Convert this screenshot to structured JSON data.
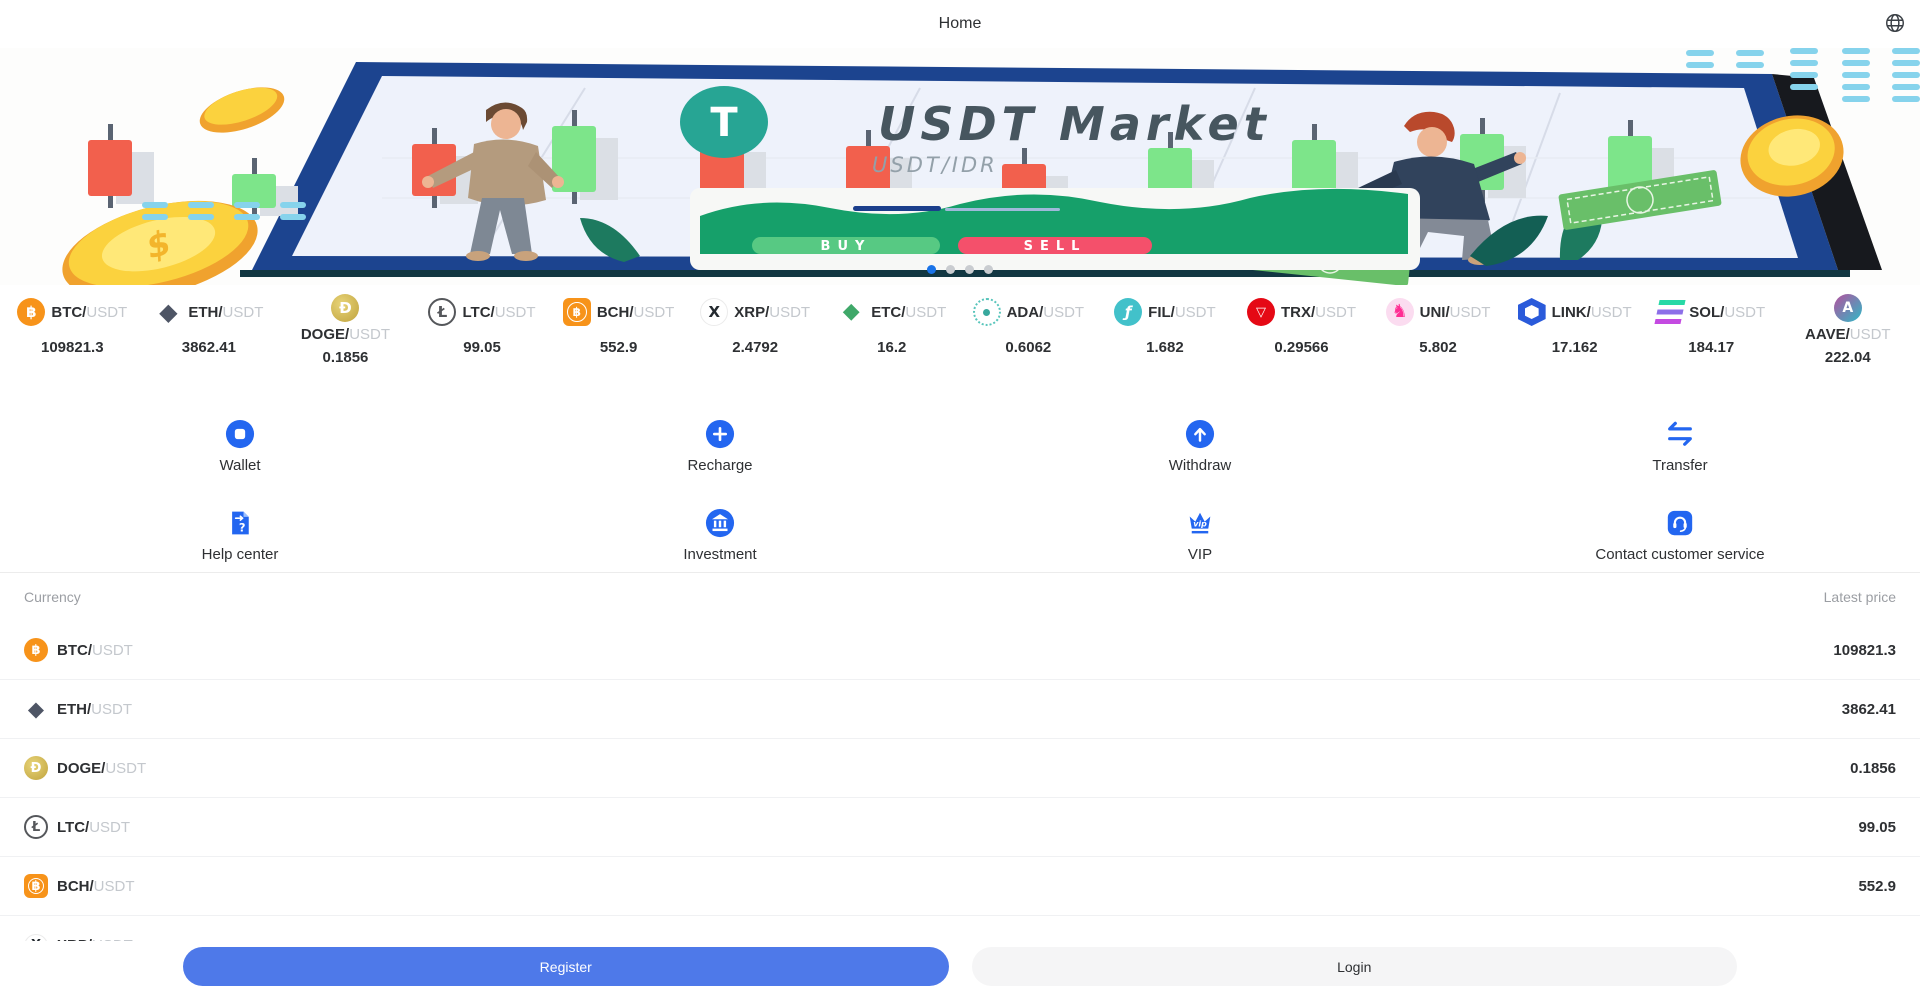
{
  "header": {
    "title": "Home"
  },
  "banner": {
    "title": "USDT Market",
    "subtitle": "USDT/IDR",
    "buy_label": "BUY",
    "sell_label": "SELL",
    "carousel": {
      "count": 4,
      "active": 0
    }
  },
  "ticker": {
    "quote": "USDT",
    "items": [
      {
        "symbol": "BTC",
        "price": "109821.3"
      },
      {
        "symbol": "ETH",
        "price": "3862.41"
      },
      {
        "symbol": "DOGE",
        "price": "0.1856",
        "wrapped": true
      },
      {
        "symbol": "LTC",
        "price": "99.05"
      },
      {
        "symbol": "BCH",
        "price": "552.9"
      },
      {
        "symbol": "XRP",
        "price": "2.4792"
      },
      {
        "symbol": "ETC",
        "price": "16.2"
      },
      {
        "symbol": "ADA",
        "price": "0.6062"
      },
      {
        "symbol": "FIL",
        "price": "1.682"
      },
      {
        "symbol": "TRX",
        "price": "0.29566"
      },
      {
        "symbol": "UNI",
        "price": "5.802"
      },
      {
        "symbol": "LINK",
        "price": "17.162"
      },
      {
        "symbol": "SOL",
        "price": "184.17"
      },
      {
        "symbol": "AAVE",
        "price": "222.04",
        "wrapped": true
      }
    ]
  },
  "actions": [
    {
      "label": "Wallet",
      "icon": "wallet-icon"
    },
    {
      "label": "Recharge",
      "icon": "recharge-plus-icon"
    },
    {
      "label": "Withdraw",
      "icon": "withdraw-arrow-up-icon"
    },
    {
      "label": "Transfer",
      "icon": "transfer-swap-icon"
    },
    {
      "label": "Help center",
      "icon": "help-document-icon"
    },
    {
      "label": "Investment",
      "icon": "investment-bank-icon"
    },
    {
      "label": "VIP",
      "icon": "vip-crown-icon"
    },
    {
      "label": "Contact customer service",
      "icon": "customer-service-headset-icon"
    }
  ],
  "market_table": {
    "columns": [
      "Currency",
      "Latest price"
    ],
    "rows": [
      {
        "symbol": "BTC",
        "quote": "USDT",
        "price": "109821.3"
      },
      {
        "symbol": "ETH",
        "quote": "USDT",
        "price": "3862.41"
      },
      {
        "symbol": "DOGE",
        "quote": "USDT",
        "price": "0.1856"
      },
      {
        "symbol": "LTC",
        "quote": "USDT",
        "price": "99.05"
      },
      {
        "symbol": "BCH",
        "quote": "USDT",
        "price": "552.9"
      }
    ],
    "partial_row": {
      "symbol": "XRP",
      "quote": "USDT"
    }
  },
  "footer": {
    "register_label": "Register",
    "login_label": "Login"
  },
  "colors": {
    "accent_blue": "#2366f0",
    "register_blue": "#4e79e9",
    "buy_green": "#57c983",
    "sell_red": "#f4506b",
    "active_dot": "#1a73e8"
  }
}
